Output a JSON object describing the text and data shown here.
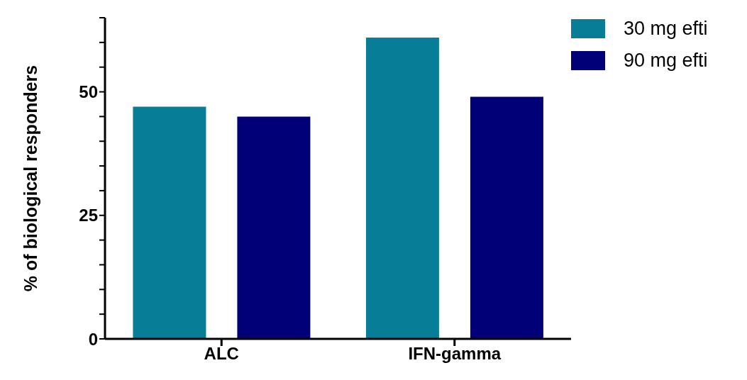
{
  "chart_data": {
    "type": "bar",
    "ylabel": "% of biological responders",
    "categories": [
      "ALC",
      "IFN-gamma"
    ],
    "series": [
      {
        "name": "30 mg efti",
        "color": "#077d98",
        "values": [
          47,
          61
        ]
      },
      {
        "name": "90 mg efti",
        "color": "#020077",
        "values": [
          45,
          49
        ]
      }
    ],
    "ylim": [
      0,
      65
    ],
    "yticks": [
      0,
      {
        "value": 5,
        "label": null
      },
      {
        "value": 10,
        "label": null
      },
      {
        "value": 15,
        "label": null
      },
      {
        "value": 20,
        "label": null
      },
      25,
      {
        "value": 30,
        "label": null
      },
      {
        "value": 35,
        "label": null
      },
      {
        "value": 40,
        "label": null
      },
      {
        "value": 45,
        "label": null
      },
      50,
      {
        "value": 55,
        "label": null
      },
      {
        "value": 60,
        "label": null
      },
      {
        "value": 65,
        "label": null
      }
    ],
    "grid": false,
    "legend": "top right"
  }
}
